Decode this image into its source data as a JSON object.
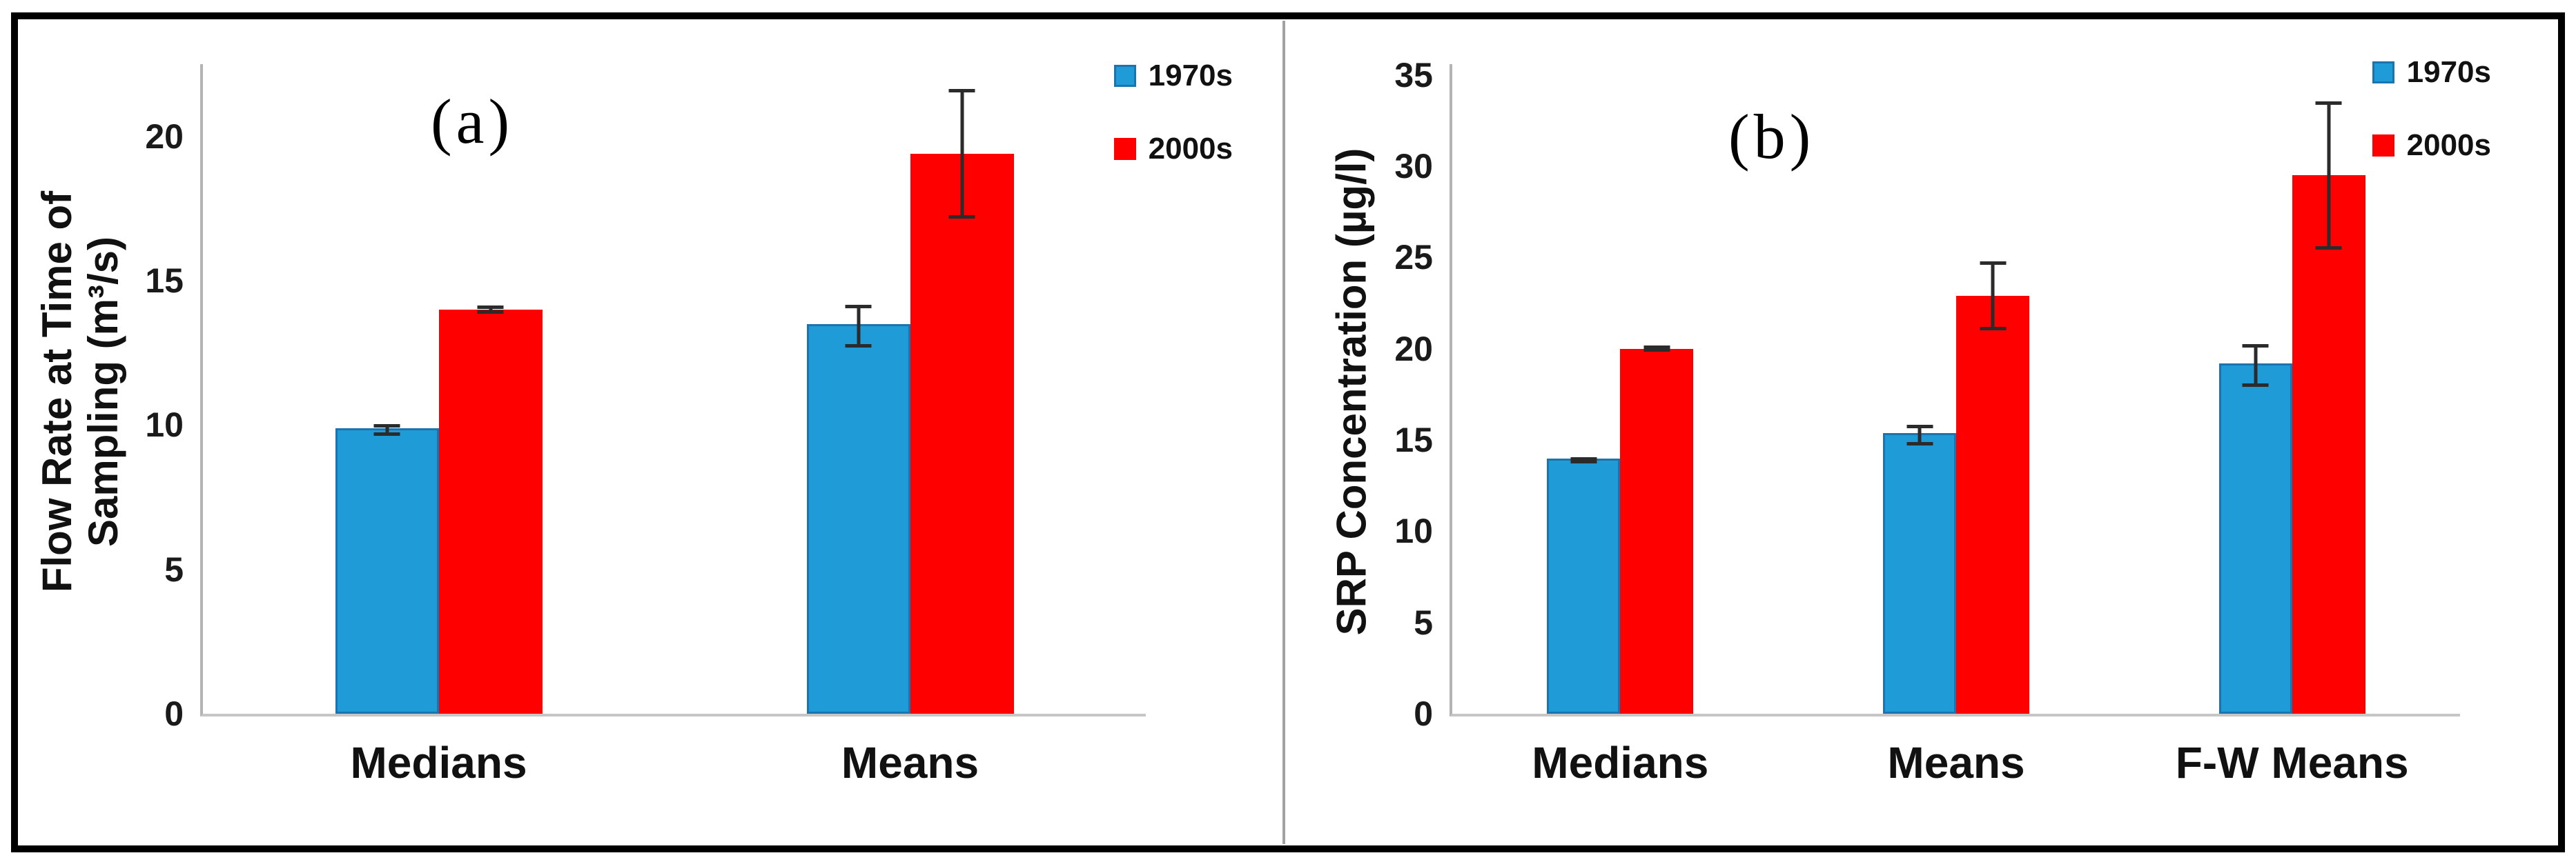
{
  "figure": {
    "background": "#ffffff",
    "frame_color": "#000000",
    "divider_color": "#a2a2a2",
    "axis_color": "#b4b4b4",
    "error_bar_color": "#2b2b2b",
    "text_color": "#111111"
  },
  "chart_data": [
    {
      "type": "bar",
      "panel_label": "(a)",
      "ylabel_lines": [
        "Flow Rate at Time of",
        "Sampling (m³/s)"
      ],
      "ylabel": "Flow Rate at Time of Sampling (m³/s)",
      "xlabel": "",
      "categories": [
        "Medians",
        "Means"
      ],
      "series": [
        {
          "name": "1970s",
          "color": "#1F9BD7",
          "edge": "#1B74AE",
          "values": [
            9.9,
            13.5
          ],
          "errors": [
            0.15,
            0.7
          ]
        },
        {
          "name": "2000s",
          "color": "#FF0000",
          "values": [
            14.0,
            19.4
          ],
          "errors": [
            0.1,
            2.2
          ]
        }
      ],
      "ylim": [
        0,
        22.5
      ],
      "yticks": [
        0,
        5,
        10,
        15,
        20
      ],
      "grid": false,
      "error_bars": true,
      "legend_position": "top-right"
    },
    {
      "type": "bar",
      "panel_label": "(b)",
      "ylabel_lines": [
        "SRP Concentration (µg/l)"
      ],
      "ylabel": "SRP Concentration (µg/l)",
      "xlabel": "",
      "categories": [
        "Medians",
        "Means",
        "F-W Means"
      ],
      "series": [
        {
          "name": "1970s",
          "color": "#1F9BD7",
          "edge": "#1B74AE",
          "values": [
            14.0,
            15.4,
            19.2
          ],
          "errors": [
            0.1,
            0.5,
            1.1
          ]
        },
        {
          "name": "2000s",
          "color": "#FF0000",
          "values": [
            20.0,
            22.9,
            29.5
          ],
          "errors": [
            0.1,
            1.8,
            4.0
          ]
        }
      ],
      "ylim": [
        0,
        35.6
      ],
      "yticks": [
        0,
        5,
        10,
        15,
        20,
        25,
        30,
        35
      ],
      "grid": false,
      "error_bars": true,
      "legend_position": "top-right"
    }
  ]
}
